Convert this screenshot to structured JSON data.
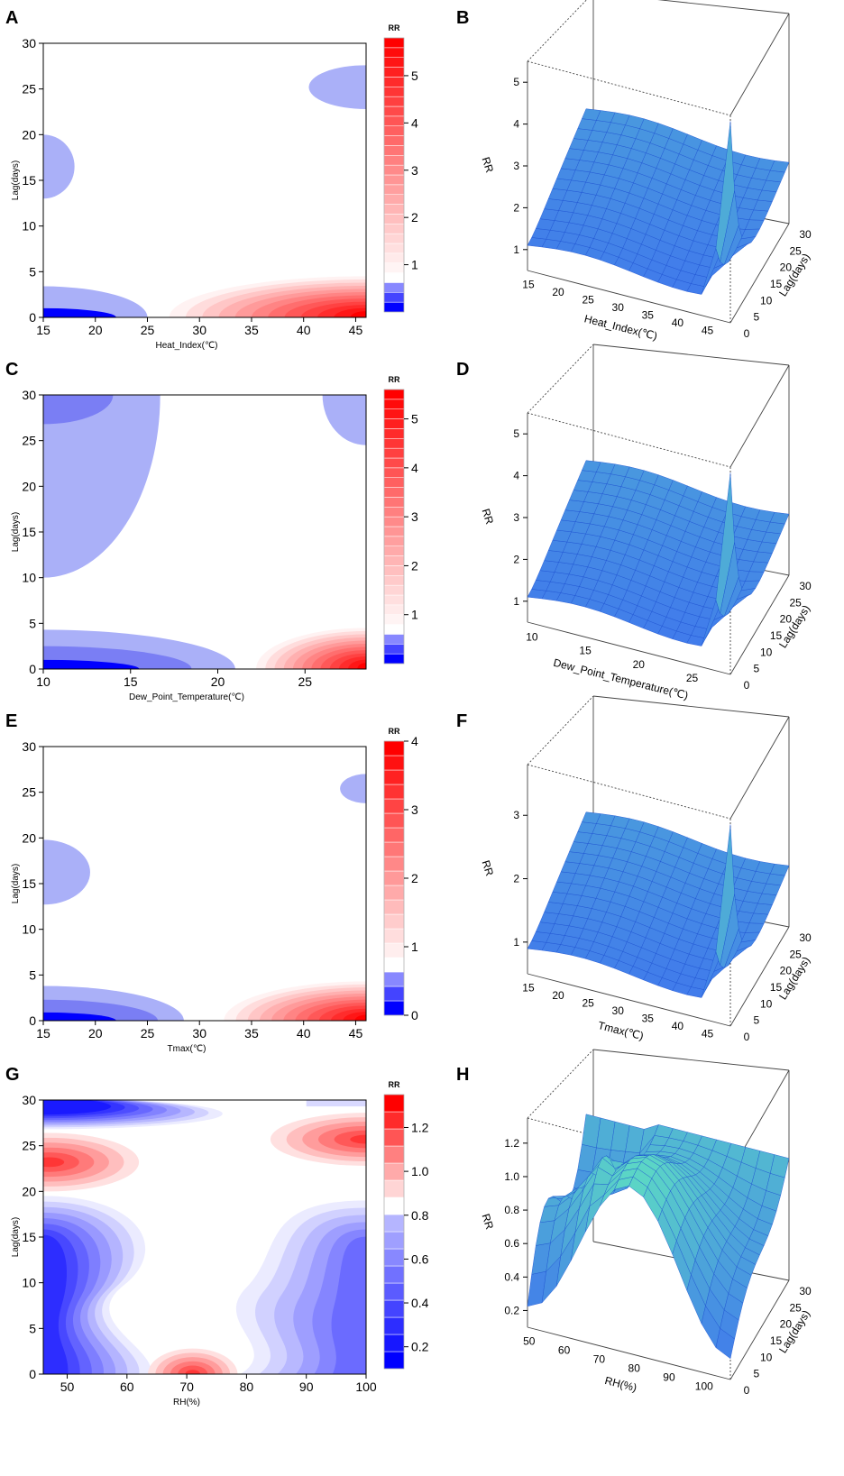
{
  "figure": {
    "panel_letters": [
      "A",
      "B",
      "C",
      "D",
      "E",
      "F",
      "G",
      "H"
    ]
  },
  "colors": {
    "blue_dark": "#0000ff",
    "blue_light": "#aab0f8",
    "red_dark": "#ff0000",
    "white": "#ffffff",
    "surface_blue": "#3d6ff0",
    "surface_green": "#5fe3c0",
    "grid_line": "#1b4fd0"
  },
  "chart_data": [
    {
      "panel": "A",
      "type": "heatmap",
      "subtype": "contour",
      "title": "",
      "xlabel": "Heat_Index(℃)",
      "ylabel": "Lag(days)",
      "xlim": [
        15,
        46
      ],
      "ylim": [
        0,
        30
      ],
      "x_ticks": [
        "15",
        "20",
        "25",
        "30",
        "35",
        "40",
        "45"
      ],
      "y_ticks": [
        "0",
        "5",
        "10",
        "15",
        "20",
        "25",
        "30"
      ],
      "legend": {
        "title": "RR",
        "ticks": [
          "1",
          "2",
          "3",
          "4",
          "5"
        ],
        "range": [
          0,
          5.8
        ],
        "blue_levels": 3,
        "red_levels": 24
      },
      "regions": [
        {
          "kind": "low",
          "level": 1,
          "x": [
            15,
            25
          ],
          "y": [
            0,
            3.4
          ]
        },
        {
          "kind": "low",
          "level": 3,
          "x": [
            15,
            22
          ],
          "y": [
            0,
            1.0
          ]
        },
        {
          "kind": "low",
          "level": 1,
          "x": [
            15,
            18
          ],
          "y": [
            13,
            20
          ]
        },
        {
          "kind": "low",
          "level": 1,
          "x": [
            40.5,
            46
          ],
          "y": [
            22.8,
            27.6
          ]
        },
        {
          "kind": "high",
          "x": [
            28,
            46
          ],
          "y": [
            0,
            4.5
          ],
          "max": 5.8
        }
      ]
    },
    {
      "panel": "B",
      "type": "surface",
      "xlabel": "Heat_Index(℃)",
      "ylabel": "Lag(days)",
      "zlabel": "RR",
      "x_ticks": [
        "15",
        "20",
        "25",
        "30",
        "35",
        "40",
        "45"
      ],
      "y_ticks": [
        "0",
        "5",
        "10",
        "15",
        "20",
        "25",
        "30"
      ],
      "z_ticks": [
        "1",
        "2",
        "3",
        "4",
        "5"
      ],
      "z_range": [
        0.5,
        5.5
      ]
    },
    {
      "panel": "C",
      "type": "heatmap",
      "subtype": "contour",
      "title": "",
      "xlabel": "Dew_Point_Temperature(℃)",
      "ylabel": "Lag(days)",
      "xlim": [
        10,
        28.5
      ],
      "ylim": [
        0,
        30
      ],
      "x_ticks": [
        "10",
        "15",
        "20",
        "25"
      ],
      "y_ticks": [
        "0",
        "5",
        "10",
        "15",
        "20",
        "25",
        "30"
      ],
      "legend": {
        "title": "RR",
        "ticks": [
          "1",
          "2",
          "3",
          "4",
          "5"
        ],
        "range": [
          0,
          5.6
        ],
        "blue_levels": 3,
        "red_levels": 24
      },
      "regions": [
        {
          "kind": "low",
          "level": 1,
          "x": [
            10,
            21
          ],
          "y": [
            0,
            4.3
          ]
        },
        {
          "kind": "low",
          "level": 2,
          "x": [
            10,
            18.5
          ],
          "y": [
            0,
            2.5
          ]
        },
        {
          "kind": "low",
          "level": 3,
          "x": [
            10,
            15.5
          ],
          "y": [
            0,
            1.0
          ]
        },
        {
          "kind": "low",
          "level": 1,
          "x": [
            10,
            16.7
          ],
          "y": [
            10,
            30
          ]
        },
        {
          "kind": "low",
          "level": 2,
          "x": [
            10,
            14
          ],
          "y": [
            26.8,
            30
          ]
        },
        {
          "kind": "low",
          "level": 1,
          "x": [
            26,
            28.5
          ],
          "y": [
            24.5,
            30
          ]
        },
        {
          "kind": "high",
          "x": [
            22.5,
            28.5
          ],
          "y": [
            0,
            4.5
          ],
          "max": 5.6
        }
      ]
    },
    {
      "panel": "D",
      "type": "surface",
      "xlabel": "Dew_Point_Temperature(℃)",
      "ylabel": "Lag(days)",
      "zlabel": "RR",
      "x_ticks": [
        "10",
        "15",
        "20",
        "25"
      ],
      "y_ticks": [
        "0",
        "5",
        "10",
        "15",
        "20",
        "25",
        "30"
      ],
      "z_ticks": [
        "1",
        "2",
        "3",
        "4",
        "5"
      ],
      "z_range": [
        0.5,
        5.5
      ]
    },
    {
      "panel": "E",
      "type": "heatmap",
      "subtype": "contour",
      "title": "",
      "xlabel": "Tmax(℃)",
      "ylabel": "Lag(days)",
      "xlim": [
        15,
        46
      ],
      "ylim": [
        0,
        30
      ],
      "x_ticks": [
        "15",
        "20",
        "25",
        "30",
        "35",
        "40",
        "45"
      ],
      "y_ticks": [
        "0",
        "5",
        "10",
        "15",
        "20",
        "25",
        "30"
      ],
      "legend": {
        "title": "RR",
        "ticks": [
          "0",
          "1",
          "2",
          "3",
          "4"
        ],
        "range": [
          0,
          4
        ],
        "blue_levels": 3,
        "red_levels": 15
      },
      "regions": [
        {
          "kind": "low",
          "level": 1,
          "x": [
            15,
            28.5
          ],
          "y": [
            0,
            3.8
          ]
        },
        {
          "kind": "low",
          "level": 2,
          "x": [
            15,
            26
          ],
          "y": [
            0,
            2.3
          ]
        },
        {
          "kind": "low",
          "level": 3,
          "x": [
            15,
            22
          ],
          "y": [
            0,
            0.9
          ]
        },
        {
          "kind": "low",
          "level": 1,
          "x": [
            15,
            19.5
          ],
          "y": [
            12.7,
            19.8
          ]
        },
        {
          "kind": "low",
          "level": 1,
          "x": [
            43.5,
            46
          ],
          "y": [
            23.8,
            27
          ]
        },
        {
          "kind": "high",
          "x": [
            33,
            46
          ],
          "y": [
            0,
            4.3
          ],
          "max": 4
        }
      ]
    },
    {
      "panel": "F",
      "type": "surface",
      "xlabel": "Tmax(℃)",
      "ylabel": "Lag(days)",
      "zlabel": "RR",
      "x_ticks": [
        "15",
        "20",
        "25",
        "30",
        "35",
        "40",
        "45"
      ],
      "y_ticks": [
        "0",
        "5",
        "10",
        "15",
        "20",
        "25",
        "30"
      ],
      "z_ticks": [
        "1",
        "2",
        "3"
      ],
      "z_range": [
        0.5,
        3.8
      ]
    },
    {
      "panel": "G",
      "type": "heatmap",
      "subtype": "contour",
      "title": "",
      "xlabel": "RH(%)",
      "ylabel": "Lag(days)",
      "xlim": [
        46,
        100
      ],
      "ylim": [
        0,
        30
      ],
      "x_ticks": [
        "50",
        "60",
        "70",
        "80",
        "90",
        "100"
      ],
      "y_ticks": [
        "0",
        "5",
        "10",
        "15",
        "20",
        "25",
        "30"
      ],
      "legend": {
        "title": "RR",
        "ticks": [
          "0.2",
          "0.4",
          "0.6",
          "0.8",
          "1.0",
          "1.2"
        ],
        "range": [
          0.1,
          1.35
        ],
        "blue_levels": 9,
        "red_levels": 6
      },
      "regions": [
        {
          "kind": "blue_band",
          "x": [
            46,
            64
          ],
          "y": [
            0,
            19.5
          ],
          "max_level": 8
        },
        {
          "kind": "blue_band_right",
          "x": [
            80,
            100
          ],
          "y": [
            0,
            19
          ],
          "max_level": 6
        },
        {
          "kind": "blue_top",
          "x": [
            46,
            76
          ],
          "y": [
            27,
            30
          ],
          "max_level": 9
        },
        {
          "kind": "red_spot",
          "cx": 47,
          "cy": 23.2,
          "rx": 15,
          "ry": 3.2,
          "max": 1.3
        },
        {
          "kind": "red_spot",
          "cx": 100,
          "cy": 25.7,
          "rx": 16,
          "ry": 2.9,
          "max": 1.3
        },
        {
          "kind": "red_spot",
          "cx": 71,
          "cy": 0,
          "rx": 7.5,
          "ry": 2.8,
          "max": 1.2
        }
      ]
    },
    {
      "panel": "H",
      "type": "surface",
      "xlabel": "RH(%)",
      "ylabel": "Lag(days)",
      "zlabel": "RR",
      "x_ticks": [
        "50",
        "60",
        "70",
        "80",
        "90",
        "100"
      ],
      "y_ticks": [
        "0",
        "5",
        "10",
        "15",
        "20",
        "25",
        "30"
      ],
      "z_ticks": [
        "0.2",
        "0.4",
        "0.6",
        "0.8",
        "1.0",
        "1.2"
      ],
      "z_range": [
        0.1,
        1.35
      ]
    }
  ]
}
